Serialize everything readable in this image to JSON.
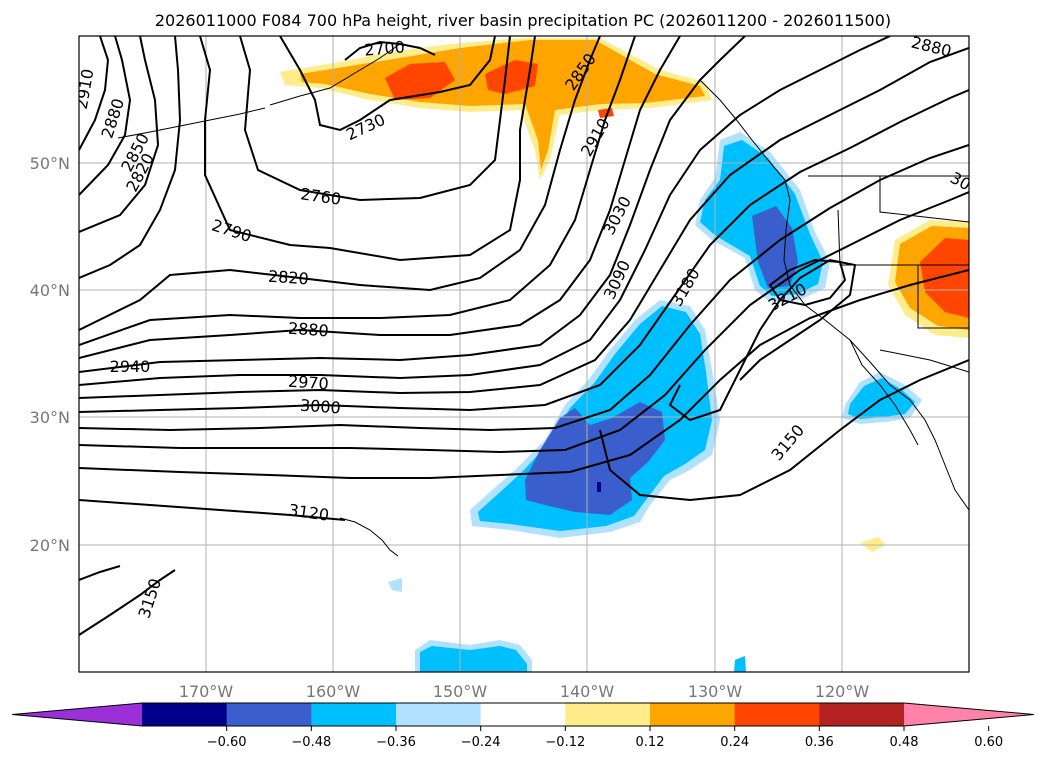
{
  "title": "2026011000 F084 700 hPa height, river basin precipitation PC (2026011200 - 2026011500)",
  "lat_labels": [
    "50°N",
    "40°N",
    "30°N",
    "20°N"
  ],
  "lon_labels": [
    "170°W",
    "160°W",
    "150°W",
    "140°W",
    "130°W",
    "120°W"
  ],
  "contour_labels": [
    "2700",
    "2730",
    "2760",
    "2790",
    "2820",
    "2850",
    "2880",
    "2910",
    "2820",
    "2880",
    "2940",
    "2970",
    "3000",
    "3030",
    "3090",
    "3120",
    "3150",
    "3150",
    "3180",
    "3210",
    "2850",
    "2880",
    "2910",
    "30"
  ],
  "colorbar": {
    "ticks": [
      "−0.60",
      "−0.48",
      "−0.36",
      "−0.24",
      "−0.12",
      "0.12",
      "0.24",
      "0.36",
      "0.48",
      "0.60"
    ],
    "colors": [
      "#9b30d9",
      "#00008b",
      "#3a5fcd",
      "#00bfff",
      "#b0e2ff",
      "#ffffff",
      "#ffec8b",
      "#ffa500",
      "#ff4500",
      "#b22222",
      "#ff82ab"
    ]
  }
}
